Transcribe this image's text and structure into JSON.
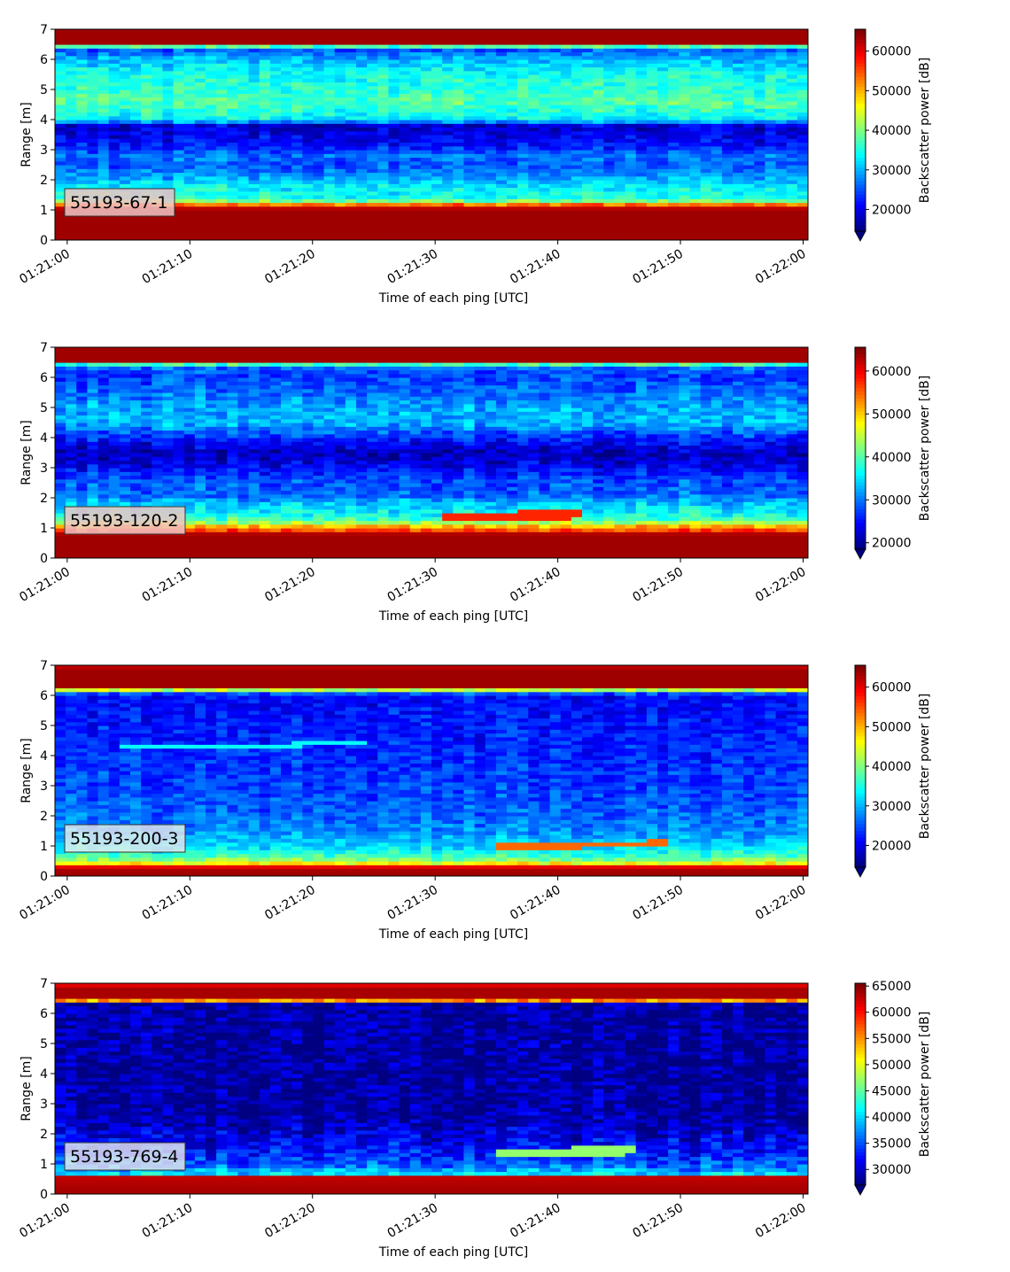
{
  "chart_data": [
    {
      "type": "heatmap",
      "id_label": "55193-67-1",
      "xlabel": "Time of each ping [UTC]",
      "ylabel": "Range [m]",
      "x_ticks": [
        "01:21:00",
        "01:21:10",
        "01:21:20",
        "01:21:30",
        "01:21:40",
        "01:21:50",
        "01:22:00"
      ],
      "y_ticks": [
        "0",
        "1",
        "2",
        "3",
        "4",
        "5",
        "6",
        "7"
      ],
      "xlim_seconds": [
        -1,
        60.4
      ],
      "ylim": [
        0,
        7
      ],
      "colorbar": {
        "label": "Backscatter power [dB]",
        "ticks": [
          "20000",
          "30000",
          "40000",
          "50000",
          "60000"
        ],
        "range": [
          14500,
          65535
        ]
      },
      "colormap": "jet",
      "profile": [
        {
          "r": 0.0,
          "v": 64000
        },
        {
          "r": 0.2,
          "v": 64000
        },
        {
          "r": 1.0,
          "v": 64000
        },
        {
          "r": 1.12,
          "v": 61000
        },
        {
          "r": 1.22,
          "v": 50000
        },
        {
          "r": 1.35,
          "v": 35000
        },
        {
          "r": 1.8,
          "v": 33000
        },
        {
          "r": 2.1,
          "v": 29000
        },
        {
          "r": 2.5,
          "v": 25000
        },
        {
          "r": 2.8,
          "v": 27000
        },
        {
          "r": 3.1,
          "v": 22000
        },
        {
          "r": 3.8,
          "v": 18000
        },
        {
          "r": 4.0,
          "v": 33000
        },
        {
          "r": 4.6,
          "v": 38000
        },
        {
          "r": 5.0,
          "v": 36000
        },
        {
          "r": 5.6,
          "v": 34000
        },
        {
          "r": 6.1,
          "v": 29000
        },
        {
          "r": 6.4,
          "v": 24000
        },
        {
          "r": 6.48,
          "v": 52000
        },
        {
          "r": 6.55,
          "v": 64000
        },
        {
          "r": 7.0,
          "v": 64000
        }
      ],
      "features": []
    },
    {
      "type": "heatmap",
      "id_label": "55193-120-2",
      "xlabel": "Time of each ping [UTC]",
      "ylabel": "Range [m]",
      "x_ticks": [
        "01:21:00",
        "01:21:10",
        "01:21:20",
        "01:21:30",
        "01:21:40",
        "01:21:50",
        "01:22:00"
      ],
      "y_ticks": [
        "0",
        "1",
        "2",
        "3",
        "4",
        "5",
        "6",
        "7"
      ],
      "xlim_seconds": [
        -1,
        60.4
      ],
      "ylim": [
        0,
        7
      ],
      "colorbar": {
        "label": "Backscatter power [dB]",
        "ticks": [
          "20000",
          "30000",
          "40000",
          "50000",
          "60000"
        ],
        "range": [
          18500,
          65535
        ]
      },
      "colormap": "jet",
      "profile": [
        {
          "r": 0.0,
          "v": 64000
        },
        {
          "r": 0.8,
          "v": 64000
        },
        {
          "r": 0.9,
          "v": 58000
        },
        {
          "r": 1.05,
          "v": 52000
        },
        {
          "r": 1.25,
          "v": 40000
        },
        {
          "r": 1.5,
          "v": 36000
        },
        {
          "r": 1.8,
          "v": 34000
        },
        {
          "r": 2.1,
          "v": 29000
        },
        {
          "r": 2.6,
          "v": 28000
        },
        {
          "r": 3.0,
          "v": 24000
        },
        {
          "r": 3.5,
          "v": 21000
        },
        {
          "r": 4.0,
          "v": 26000
        },
        {
          "r": 4.5,
          "v": 33000
        },
        {
          "r": 5.0,
          "v": 32000
        },
        {
          "r": 5.6,
          "v": 29000
        },
        {
          "r": 6.1,
          "v": 27000
        },
        {
          "r": 6.35,
          "v": 30000
        },
        {
          "r": 6.45,
          "v": 40000
        },
        {
          "r": 6.55,
          "v": 64000
        },
        {
          "r": 7.0,
          "v": 64000
        }
      ],
      "features": [
        {
          "t0": 31,
          "t1": 42,
          "r0": 1.2,
          "r1": 1.5,
          "v": 58000
        }
      ]
    },
    {
      "type": "heatmap",
      "id_label": "55193-200-3",
      "xlabel": "Time of each ping [UTC]",
      "ylabel": "Range [m]",
      "x_ticks": [
        "01:21:00",
        "01:21:10",
        "01:21:20",
        "01:21:30",
        "01:21:40",
        "01:21:50",
        "01:22:00"
      ],
      "y_ticks": [
        "0",
        "1",
        "2",
        "3",
        "4",
        "5",
        "6",
        "7"
      ],
      "xlim_seconds": [
        -1,
        60.4
      ],
      "ylim": [
        0,
        7
      ],
      "colorbar": {
        "label": "Backscatter power [dB]",
        "ticks": [
          "20000",
          "30000",
          "40000",
          "50000",
          "60000"
        ],
        "range": [
          14500,
          65535
        ]
      },
      "colormap": "jet",
      "profile": [
        {
          "r": 0.0,
          "v": 64000
        },
        {
          "r": 0.15,
          "v": 64000
        },
        {
          "r": 0.3,
          "v": 62000
        },
        {
          "r": 0.4,
          "v": 48000
        },
        {
          "r": 0.6,
          "v": 38000
        },
        {
          "r": 1.0,
          "v": 32000
        },
        {
          "r": 1.5,
          "v": 28000
        },
        {
          "r": 2.0,
          "v": 26000
        },
        {
          "r": 3.0,
          "v": 24000
        },
        {
          "r": 4.0,
          "v": 23000
        },
        {
          "r": 5.0,
          "v": 22000
        },
        {
          "r": 6.0,
          "v": 21000
        },
        {
          "r": 6.15,
          "v": 30000
        },
        {
          "r": 6.25,
          "v": 64000
        },
        {
          "r": 6.9,
          "v": 64000
        },
        {
          "r": 7.0,
          "v": 60000
        }
      ],
      "features": [
        {
          "t0": 4,
          "t1": 24,
          "r0": 4.22,
          "r1": 4.35,
          "v": 34000
        },
        {
          "t0": 35,
          "t1": 49,
          "r0": 0.88,
          "r1": 1.08,
          "v": 54000
        }
      ]
    },
    {
      "type": "heatmap",
      "id_label": "55193-769-4",
      "xlabel": "Time of each ping [UTC]",
      "ylabel": "Range [m]",
      "x_ticks": [
        "01:21:00",
        "01:21:10",
        "01:21:20",
        "01:21:30",
        "01:21:40",
        "01:21:50",
        "01:22:00"
      ],
      "y_ticks": [
        "0",
        "1",
        "2",
        "3",
        "4",
        "5",
        "6",
        "7"
      ],
      "xlim_seconds": [
        -1,
        60.4
      ],
      "ylim": [
        0,
        7
      ],
      "colorbar": {
        "label": "Backscatter power [dB]",
        "ticks": [
          "30000",
          "35000",
          "40000",
          "45000",
          "50000",
          "55000",
          "60000",
          "65000"
        ],
        "range": [
          27000,
          65535
        ]
      },
      "colormap": "jet",
      "profile": [
        {
          "r": 0.0,
          "v": 64000
        },
        {
          "r": 0.2,
          "v": 64000
        },
        {
          "r": 0.6,
          "v": 63000
        },
        {
          "r": 0.68,
          "v": 40000
        },
        {
          "r": 0.9,
          "v": 36000
        },
        {
          "r": 1.3,
          "v": 33000
        },
        {
          "r": 1.8,
          "v": 31000
        },
        {
          "r": 2.3,
          "v": 29000
        },
        {
          "r": 2.8,
          "v": 28000
        },
        {
          "r": 6.4,
          "v": 28000
        },
        {
          "r": 6.45,
          "v": 64000
        },
        {
          "r": 6.9,
          "v": 64000
        },
        {
          "r": 7.0,
          "v": 58000
        }
      ],
      "features": [
        {
          "t0": 35,
          "t1": 46,
          "r0": 1.2,
          "r1": 1.5,
          "v": 47000
        }
      ]
    }
  ]
}
